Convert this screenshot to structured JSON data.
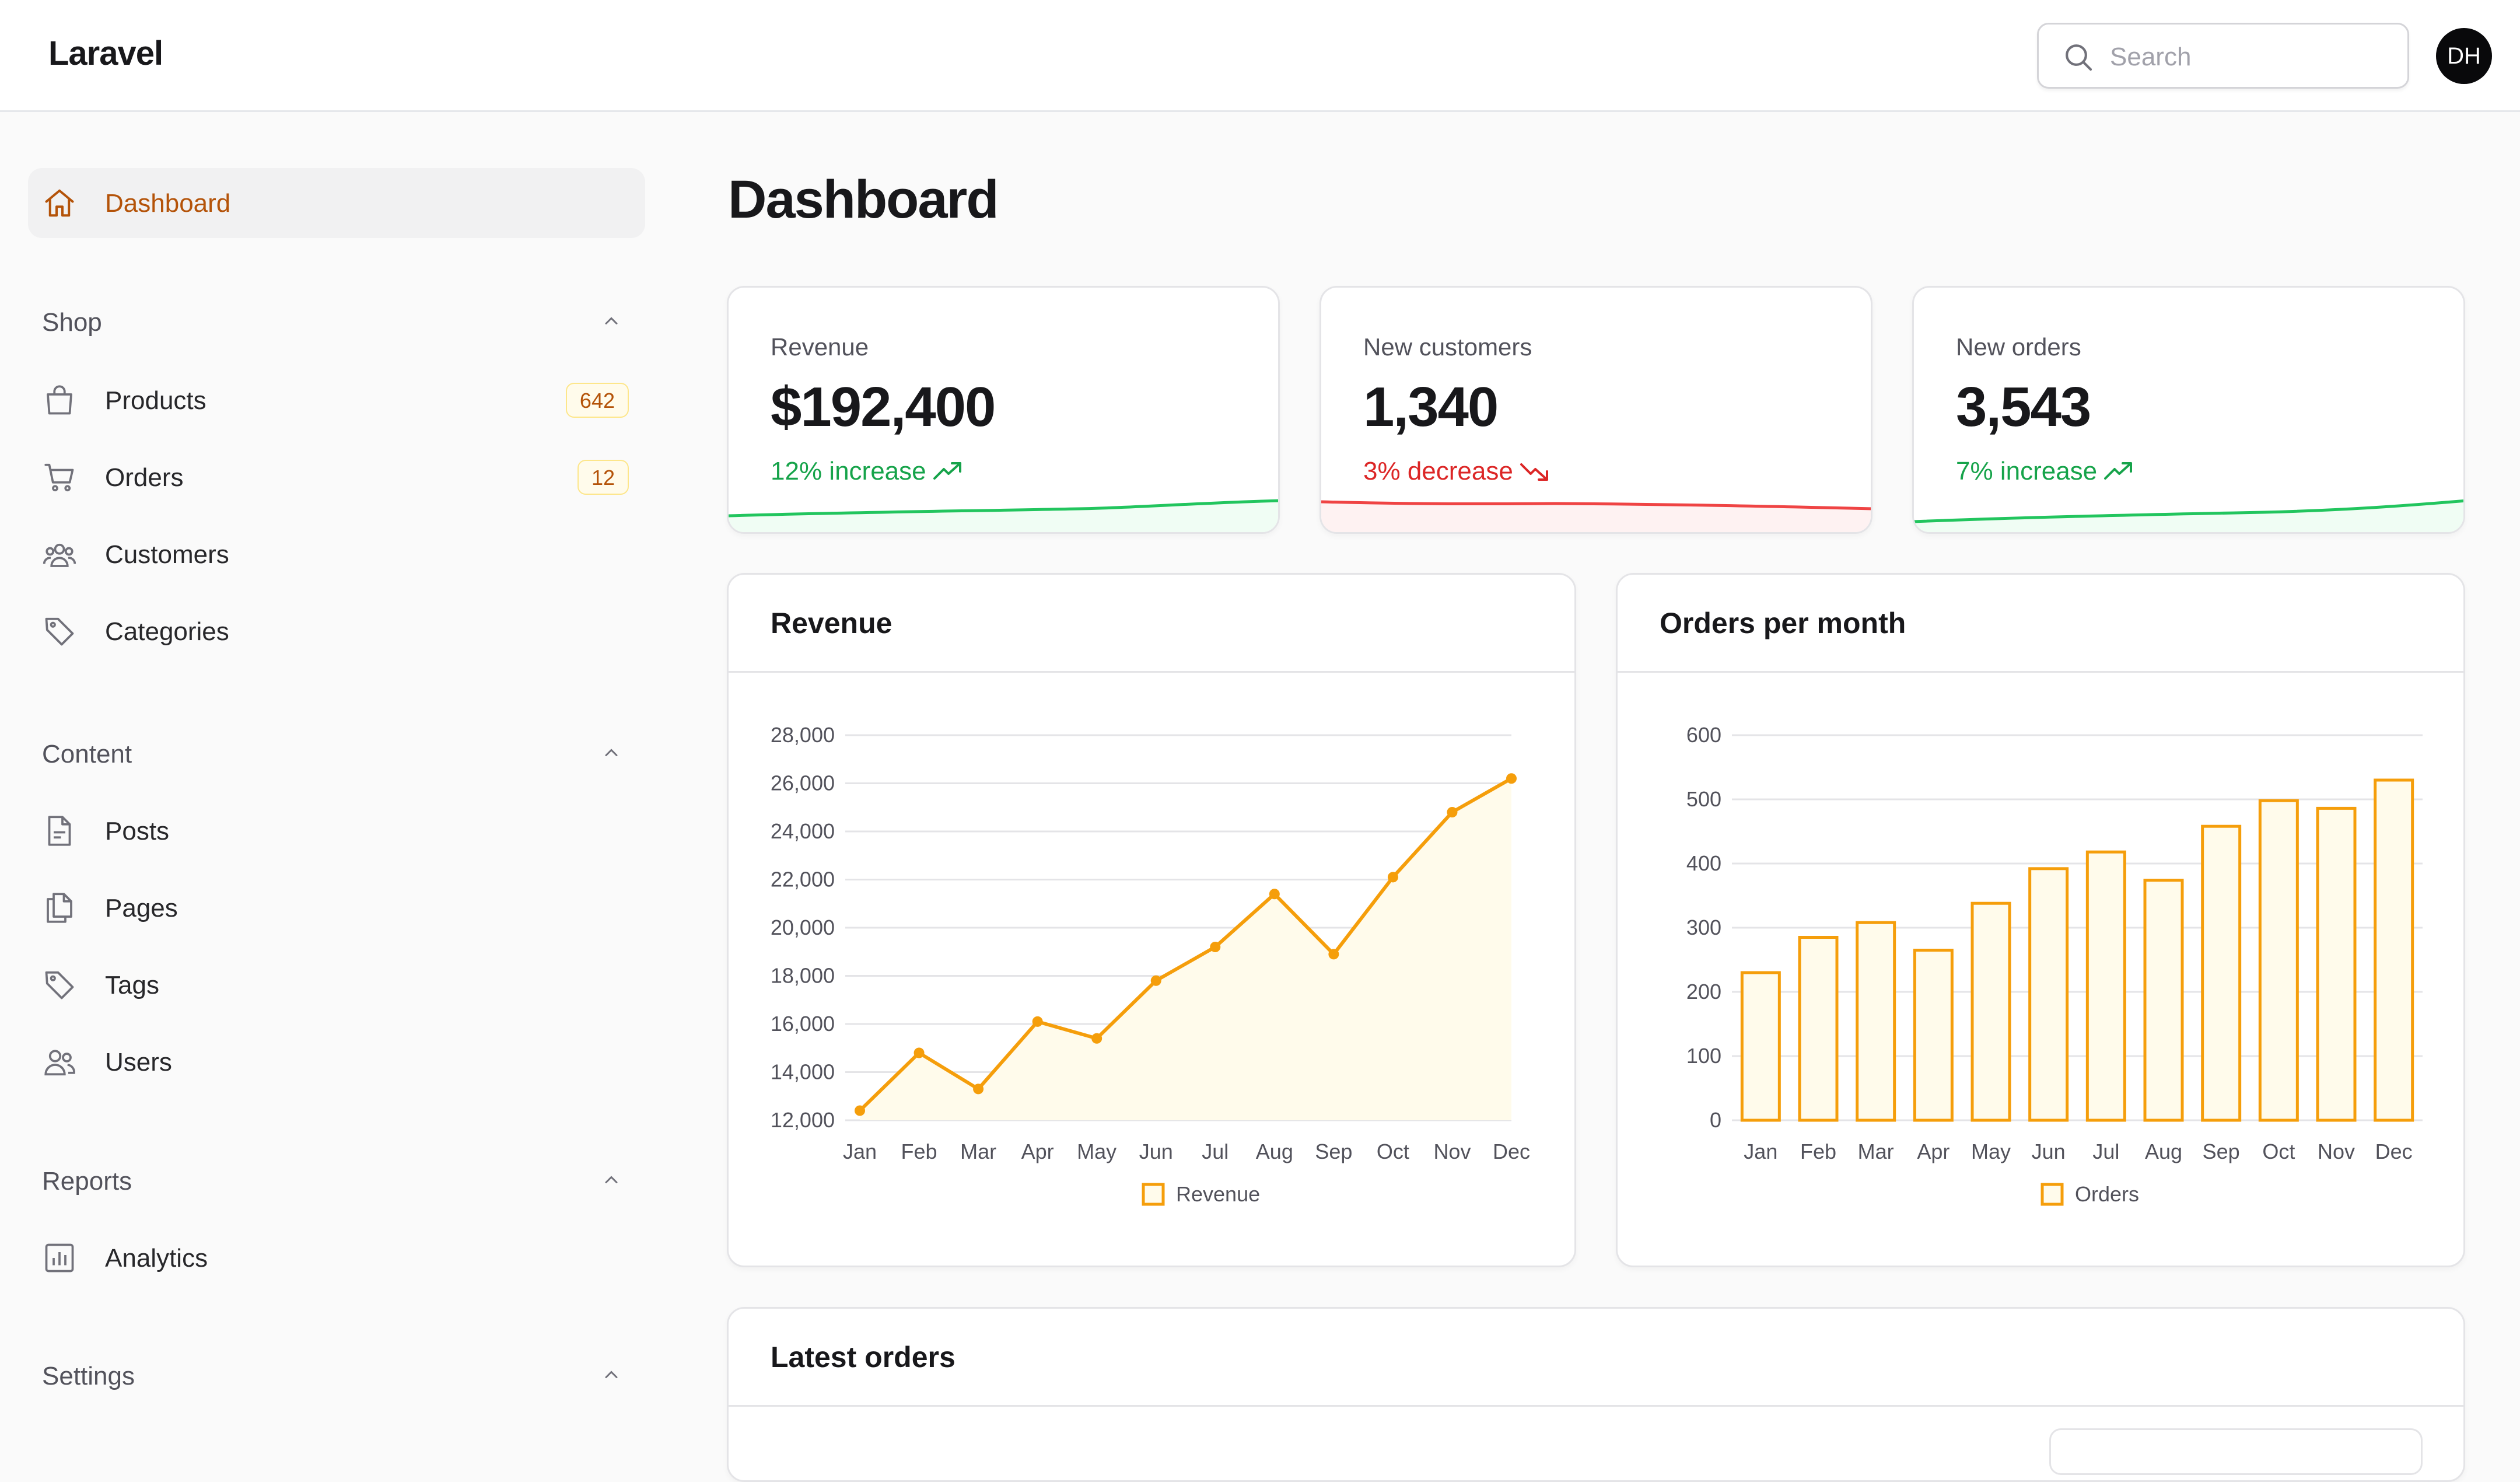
{
  "app": {
    "brand": "Laravel"
  },
  "header": {
    "search_placeholder": "Search",
    "avatar_initials": "DH"
  },
  "sidebar": {
    "dashboard": "Dashboard",
    "groups": {
      "shop": {
        "label": "Shop",
        "items": [
          {
            "label": "Products",
            "badge": "642",
            "icon": "shopping-bag-icon"
          },
          {
            "label": "Orders",
            "badge": "12",
            "icon": "shopping-cart-icon"
          },
          {
            "label": "Customers",
            "icon": "users-group-icon"
          },
          {
            "label": "Categories",
            "icon": "tag-icon"
          }
        ]
      },
      "content": {
        "label": "Content",
        "items": [
          {
            "label": "Posts",
            "icon": "document-icon"
          },
          {
            "label": "Pages",
            "icon": "documents-icon"
          },
          {
            "label": "Tags",
            "icon": "tag-icon"
          },
          {
            "label": "Users",
            "icon": "users-icon"
          }
        ]
      },
      "reports": {
        "label": "Reports",
        "items": [
          {
            "label": "Analytics",
            "icon": "chart-bar-icon"
          }
        ]
      },
      "settings": {
        "label": "Settings"
      }
    }
  },
  "main": {
    "title": "Dashboard",
    "stats": [
      {
        "label": "Revenue",
        "value": "$192,400",
        "trend": "12% increase",
        "direction": "up",
        "color": "#16a34a"
      },
      {
        "label": "New customers",
        "value": "1,340",
        "trend": "3% decrease",
        "direction": "down",
        "color": "#dc2626"
      },
      {
        "label": "New orders",
        "value": "3,543",
        "trend": "7% increase",
        "direction": "up",
        "color": "#16a34a"
      }
    ],
    "latest_orders_title": "Latest orders"
  },
  "colors": {
    "accent": "#f59e0b",
    "accent_fill": "#fffbeb",
    "active_text": "#b45309"
  },
  "chart_data": [
    {
      "type": "line",
      "title": "Revenue",
      "categories": [
        "Jan",
        "Feb",
        "Mar",
        "Apr",
        "May",
        "Jun",
        "Jul",
        "Aug",
        "Sep",
        "Oct",
        "Nov",
        "Dec"
      ],
      "series": [
        {
          "name": "Revenue",
          "values": [
            12400,
            14800,
            13300,
            16100,
            15400,
            17800,
            19200,
            21400,
            18900,
            22100,
            24800,
            26200
          ]
        }
      ],
      "ylim": [
        12000,
        28000
      ],
      "yticks": [
        "12,000",
        "14,000",
        "16,000",
        "18,000",
        "20,000",
        "22,000",
        "24,000",
        "26,000",
        "28,000"
      ],
      "grid": true,
      "legend": "bottom"
    },
    {
      "type": "bar",
      "title": "Orders per month",
      "categories": [
        "Jan",
        "Feb",
        "Mar",
        "Apr",
        "May",
        "Jun",
        "Jul",
        "Aug",
        "Sep",
        "Oct",
        "Nov",
        "Dec"
      ],
      "series": [
        {
          "name": "Orders",
          "values": [
            230,
            285,
            308,
            265,
            338,
            392,
            418,
            374,
            458,
            498,
            486,
            530
          ]
        }
      ],
      "ylim": [
        0,
        600
      ],
      "yticks": [
        "0",
        "100",
        "200",
        "300",
        "400",
        "500",
        "600"
      ],
      "grid": true,
      "legend": "bottom"
    }
  ]
}
